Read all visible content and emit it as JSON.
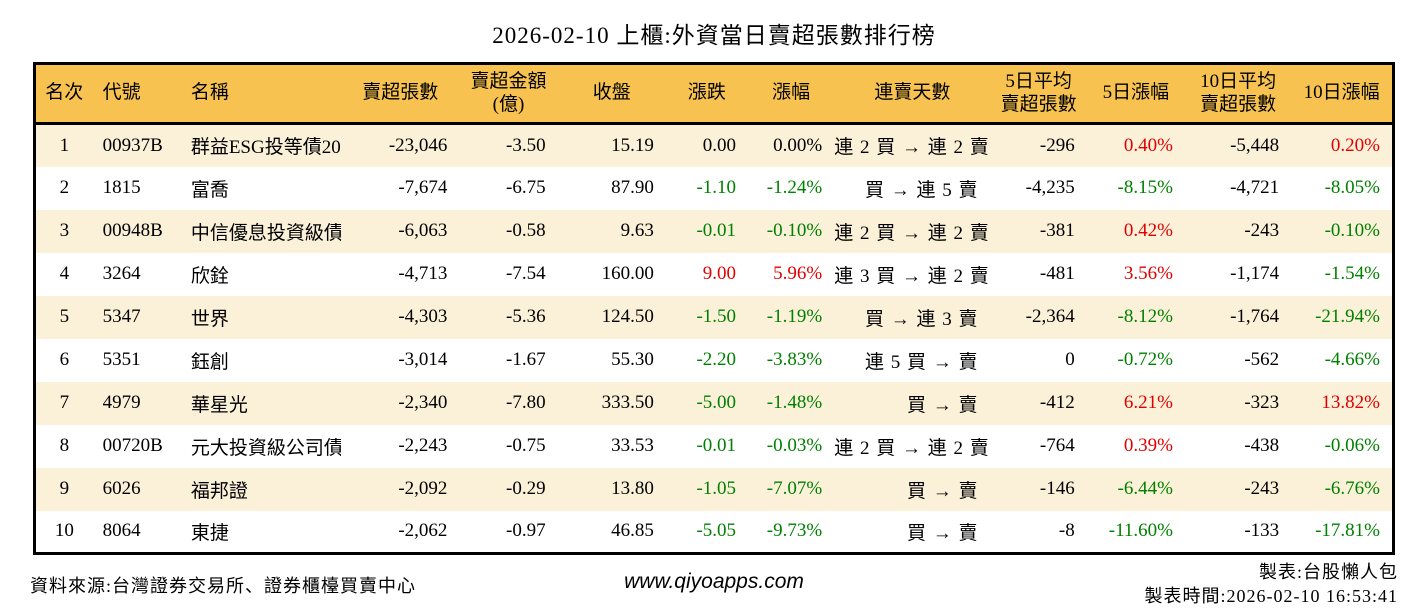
{
  "colors": {
    "up": "#e00000",
    "down": "#008000",
    "flat": "#000000",
    "header_bg": "#f7c24f",
    "row_alt_bg": "#fbf0d8",
    "border": "#000000"
  },
  "chart_data": {
    "type": "table",
    "title": "2026-02-10 上櫃:外資當日賣超張數排行榜",
    "columns": [
      "名次",
      "代號",
      "名稱",
      "賣超張數",
      "賣超金額\n(億)",
      "收盤",
      "漲跌",
      "漲幅",
      "連賣天數",
      "5日平均\n賣超張數",
      "5日漲幅",
      "10日平均\n賣超張數",
      "10日漲幅"
    ],
    "rows": [
      {
        "rank": "1",
        "code": "00937B",
        "name": "群益ESG投等債20",
        "sell_volume": "-23,046",
        "sell_amount": "-3.50",
        "close": "15.19",
        "change": "0.00",
        "change_pct": "0.00%",
        "change_trend": "flat",
        "streak": "連 2 買 → 連 2 賣",
        "avg5": "-296",
        "pct5": "0.40%",
        "pct5_trend": "up",
        "avg10": "-5,448",
        "pct10": "0.20%",
        "pct10_trend": "up"
      },
      {
        "rank": "2",
        "code": "1815",
        "name": "富喬",
        "sell_volume": "-7,674",
        "sell_amount": "-6.75",
        "close": "87.90",
        "change": "-1.10",
        "change_pct": "-1.24%",
        "change_trend": "down",
        "streak": "買 → 連 5 賣",
        "avg5": "-4,235",
        "pct5": "-8.15%",
        "pct5_trend": "down",
        "avg10": "-4,721",
        "pct10": "-8.05%",
        "pct10_trend": "down"
      },
      {
        "rank": "3",
        "code": "00948B",
        "name": "中信優息投資級債",
        "sell_volume": "-6,063",
        "sell_amount": "-0.58",
        "close": "9.63",
        "change": "-0.01",
        "change_pct": "-0.10%",
        "change_trend": "down",
        "streak": "連 2 買 → 連 2 賣",
        "avg5": "-381",
        "pct5": "0.42%",
        "pct5_trend": "up",
        "avg10": "-243",
        "pct10": "-0.10%",
        "pct10_trend": "down"
      },
      {
        "rank": "4",
        "code": "3264",
        "name": "欣銓",
        "sell_volume": "-4,713",
        "sell_amount": "-7.54",
        "close": "160.00",
        "change": "9.00",
        "change_pct": "5.96%",
        "change_trend": "up",
        "streak": "連 3 買 → 連 2 賣",
        "avg5": "-481",
        "pct5": "3.56%",
        "pct5_trend": "up",
        "avg10": "-1,174",
        "pct10": "-1.54%",
        "pct10_trend": "down"
      },
      {
        "rank": "5",
        "code": "5347",
        "name": "世界",
        "sell_volume": "-4,303",
        "sell_amount": "-5.36",
        "close": "124.50",
        "change": "-1.50",
        "change_pct": "-1.19%",
        "change_trend": "down",
        "streak": "買 → 連 3 賣",
        "avg5": "-2,364",
        "pct5": "-8.12%",
        "pct5_trend": "down",
        "avg10": "-1,764",
        "pct10": "-21.94%",
        "pct10_trend": "down"
      },
      {
        "rank": "6",
        "code": "5351",
        "name": "鈺創",
        "sell_volume": "-3,014",
        "sell_amount": "-1.67",
        "close": "55.30",
        "change": "-2.20",
        "change_pct": "-3.83%",
        "change_trend": "down",
        "streak": "連 5 買 → 賣",
        "avg5": "0",
        "pct5": "-0.72%",
        "pct5_trend": "down",
        "avg10": "-562",
        "pct10": "-4.66%",
        "pct10_trend": "down"
      },
      {
        "rank": "7",
        "code": "4979",
        "name": "華星光",
        "sell_volume": "-2,340",
        "sell_amount": "-7.80",
        "close": "333.50",
        "change": "-5.00",
        "change_pct": "-1.48%",
        "change_trend": "down",
        "streak": "買 → 賣",
        "avg5": "-412",
        "pct5": "6.21%",
        "pct5_trend": "up",
        "avg10": "-323",
        "pct10": "13.82%",
        "pct10_trend": "up"
      },
      {
        "rank": "8",
        "code": "00720B",
        "name": "元大投資級公司債",
        "sell_volume": "-2,243",
        "sell_amount": "-0.75",
        "close": "33.53",
        "change": "-0.01",
        "change_pct": "-0.03%",
        "change_trend": "down",
        "streak": "連 2 買 → 連 2 賣",
        "avg5": "-764",
        "pct5": "0.39%",
        "pct5_trend": "up",
        "avg10": "-438",
        "pct10": "-0.06%",
        "pct10_trend": "down"
      },
      {
        "rank": "9",
        "code": "6026",
        "name": "福邦證",
        "sell_volume": "-2,092",
        "sell_amount": "-0.29",
        "close": "13.80",
        "change": "-1.05",
        "change_pct": "-7.07%",
        "change_trend": "down",
        "streak": "買 → 賣",
        "avg5": "-146",
        "pct5": "-6.44%",
        "pct5_trend": "down",
        "avg10": "-243",
        "pct10": "-6.76%",
        "pct10_trend": "down"
      },
      {
        "rank": "10",
        "code": "8064",
        "name": "東捷",
        "sell_volume": "-2,062",
        "sell_amount": "-0.97",
        "close": "46.85",
        "change": "-5.05",
        "change_pct": "-9.73%",
        "change_trend": "down",
        "streak": "買 → 賣",
        "avg5": "-8",
        "pct5": "-11.60%",
        "pct5_trend": "down",
        "avg10": "-133",
        "pct10": "-17.81%",
        "pct10_trend": "down"
      }
    ]
  },
  "footer": {
    "source": "資料來源:台灣證券交易所、證券櫃檯買賣中心",
    "website": "www.qiyoapps.com",
    "maker": "製表:台股懶人包",
    "generated_at": "製表時間:2026-02-10 16:53:41"
  }
}
